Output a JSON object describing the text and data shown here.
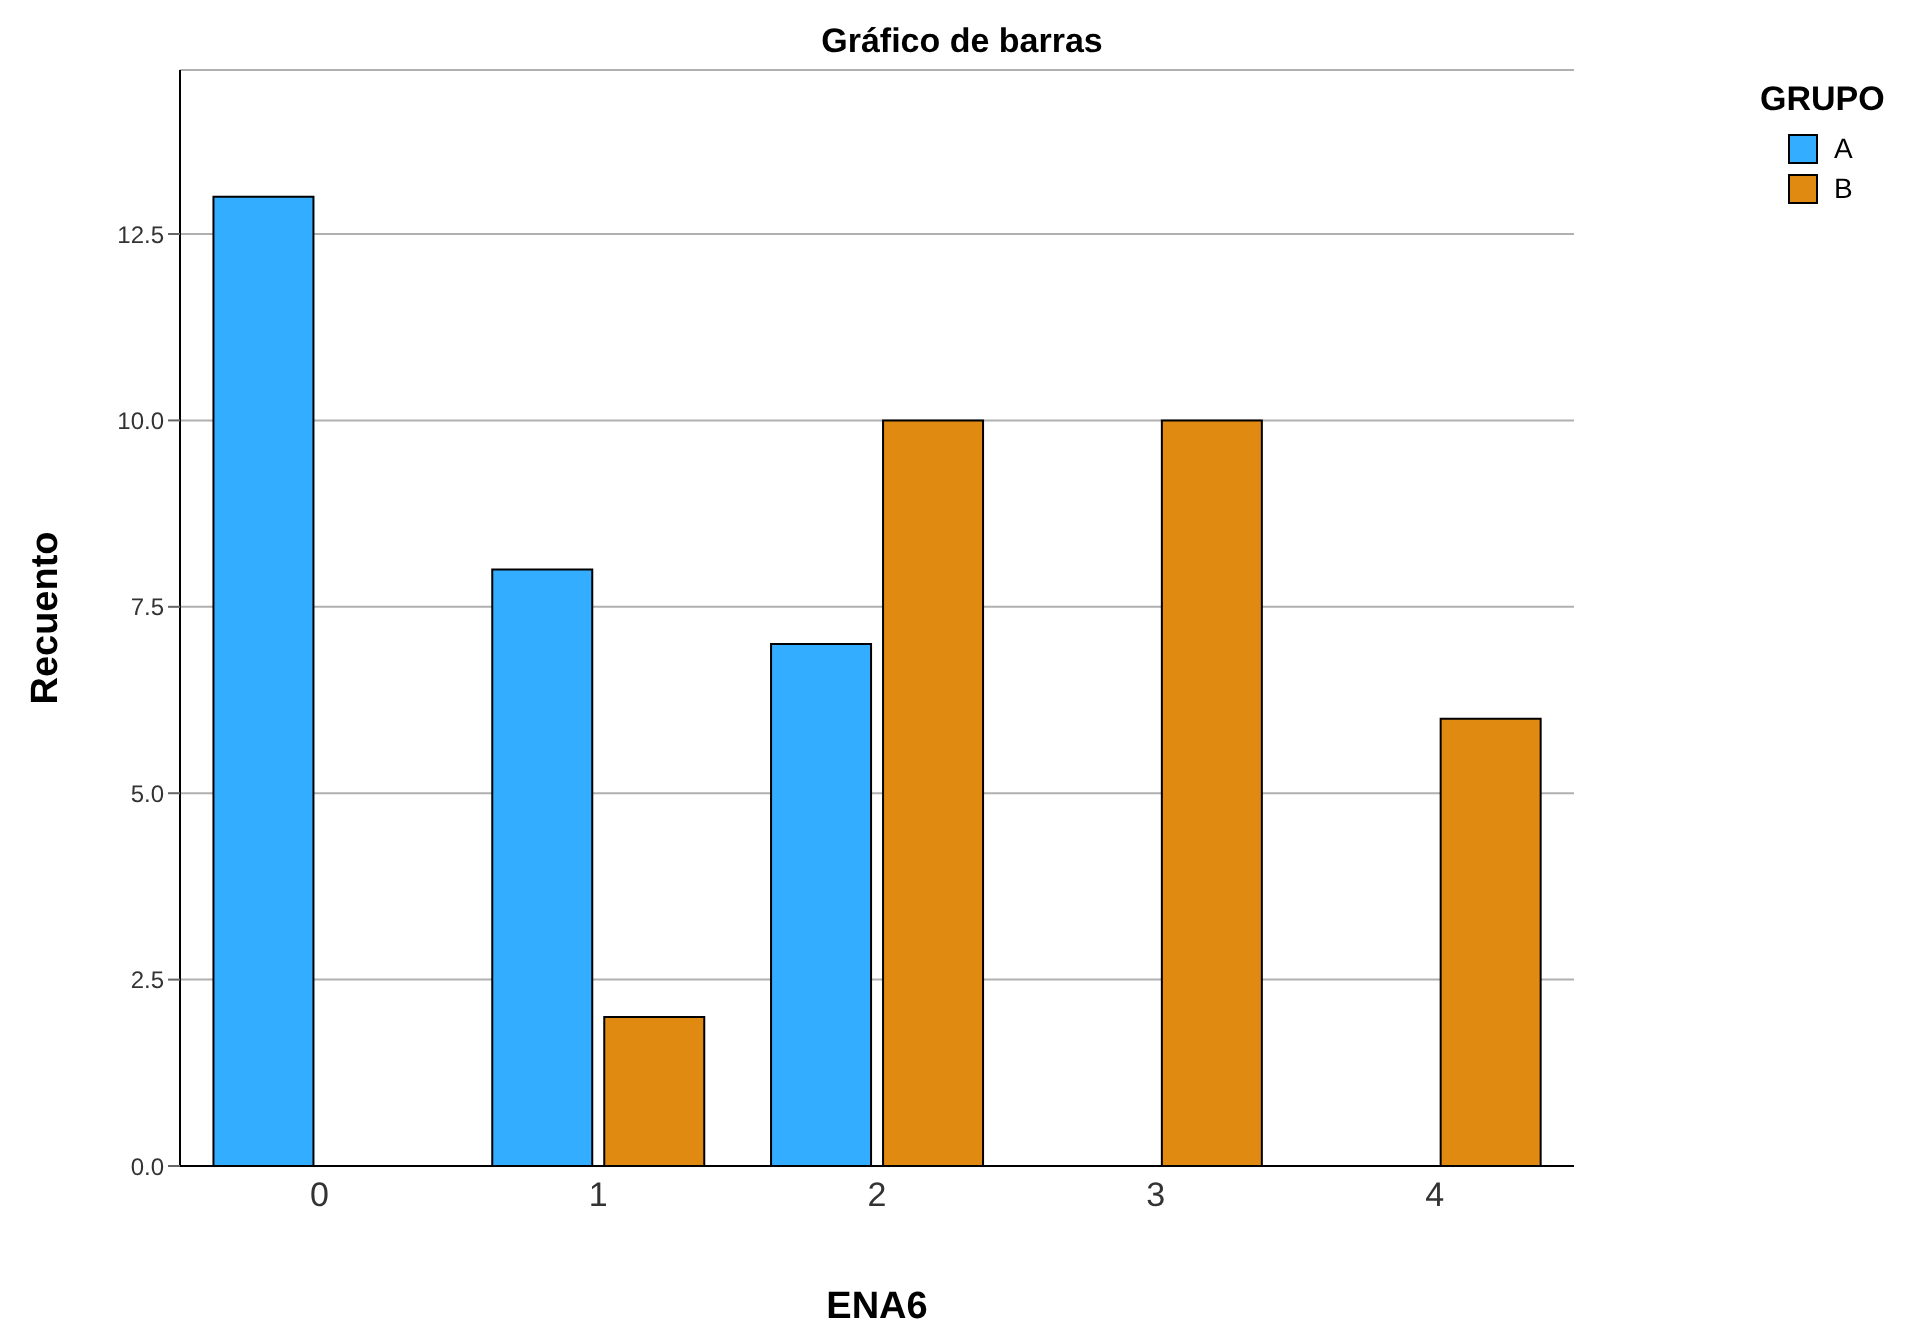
{
  "chart_data": {
    "type": "bar",
    "title": "Gráfico de barras",
    "xlabel": "ENA6",
    "ylabel": "Recuento",
    "legend_title": "GRUPO",
    "categories": [
      "0",
      "1",
      "2",
      "3",
      "4"
    ],
    "series": [
      {
        "name": "A",
        "color": "#33adff",
        "values": [
          13,
          8,
          7,
          null,
          null
        ]
      },
      {
        "name": "B",
        "color": "#e08a12",
        "values": [
          null,
          2,
          10,
          10,
          6
        ]
      }
    ],
    "ylim": [
      0,
      14.7
    ],
    "yticks": [
      {
        "value": 0,
        "label": "0.0"
      },
      {
        "value": 2.5,
        "label": "2.5"
      },
      {
        "value": 5,
        "label": "5.0"
      },
      {
        "value": 7.5,
        "label": "7.5"
      },
      {
        "value": 10,
        "label": "10.0"
      },
      {
        "value": 12.5,
        "label": "12.5"
      }
    ],
    "grid": "y",
    "legend": "top right"
  }
}
